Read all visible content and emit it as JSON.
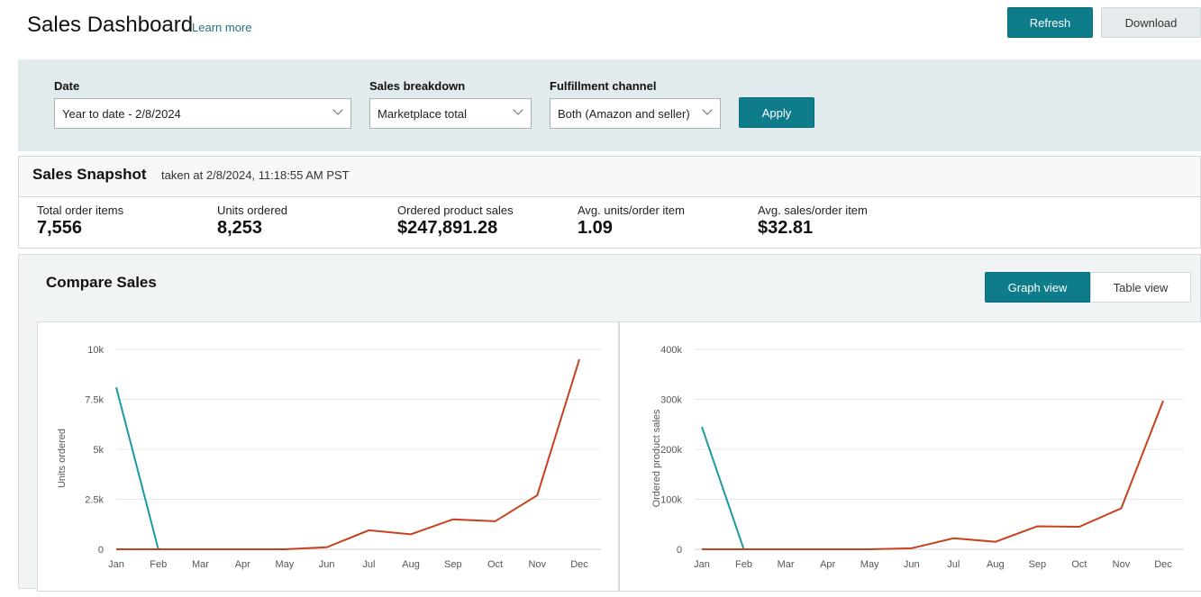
{
  "header": {
    "title": "Sales Dashboard",
    "learn_more": "Learn more",
    "refresh": "Refresh",
    "download": "Download"
  },
  "filters": {
    "date": {
      "label": "Date",
      "value": "Year to date - 2/8/2024"
    },
    "breakdown": {
      "label": "Sales breakdown",
      "value": "Marketplace total"
    },
    "channel": {
      "label": "Fulfillment channel",
      "value": "Both (Amazon and seller)"
    },
    "apply": "Apply"
  },
  "snapshot": {
    "title": "Sales Snapshot",
    "taken": "taken at 2/8/2024, 11:18:55 AM PST",
    "metrics": [
      {
        "label": "Total order items",
        "value": "7,556"
      },
      {
        "label": "Units ordered",
        "value": "8,253"
      },
      {
        "label": "Ordered product sales",
        "value": "$247,891.28"
      },
      {
        "label": "Avg. units/order item",
        "value": "1.09"
      },
      {
        "label": "Avg. sales/order item",
        "value": "$32.81"
      }
    ]
  },
  "compare": {
    "title": "Compare Sales",
    "graph_view": "Graph view",
    "table_view": "Table view"
  },
  "colors": {
    "accent": "#0f7c8c",
    "current_series": "#1a9aa6",
    "prior_series": "#c8401c"
  },
  "chart_data": [
    {
      "type": "line",
      "ylabel": "Units ordered",
      "categories": [
        "Jan",
        "Feb",
        "Mar",
        "Apr",
        "May",
        "Jun",
        "Jul",
        "Aug",
        "Sep",
        "Oct",
        "Nov",
        "Dec"
      ],
      "yticks": [
        "0",
        "2.5k",
        "5k",
        "7.5k",
        "10k"
      ],
      "ylim": [
        0,
        10000
      ],
      "grid": true,
      "series": [
        {
          "color": "#1a9aa6",
          "values": [
            8100,
            0,
            null,
            null,
            null,
            null,
            null,
            null,
            null,
            null,
            null,
            null
          ]
        },
        {
          "color": "#c8401c",
          "values": [
            0,
            0,
            0,
            0,
            0,
            100,
            950,
            750,
            1500,
            1400,
            2700,
            9500
          ]
        }
      ]
    },
    {
      "type": "line",
      "ylabel": "Ordered product sales",
      "categories": [
        "Jan",
        "Feb",
        "Mar",
        "Apr",
        "May",
        "Jun",
        "Jul",
        "Aug",
        "Sep",
        "Oct",
        "Nov",
        "Dec"
      ],
      "yticks": [
        "0",
        "100k",
        "200k",
        "300k",
        "400k"
      ],
      "ylim": [
        0,
        400000
      ],
      "grid": true,
      "series": [
        {
          "color": "#1a9aa6",
          "values": [
            245000,
            0,
            null,
            null,
            null,
            null,
            null,
            null,
            null,
            null,
            null,
            null
          ]
        },
        {
          "color": "#c8401c",
          "values": [
            0,
            0,
            0,
            0,
            0,
            2000,
            22000,
            15000,
            46000,
            45000,
            82000,
            297000
          ]
        }
      ]
    }
  ]
}
